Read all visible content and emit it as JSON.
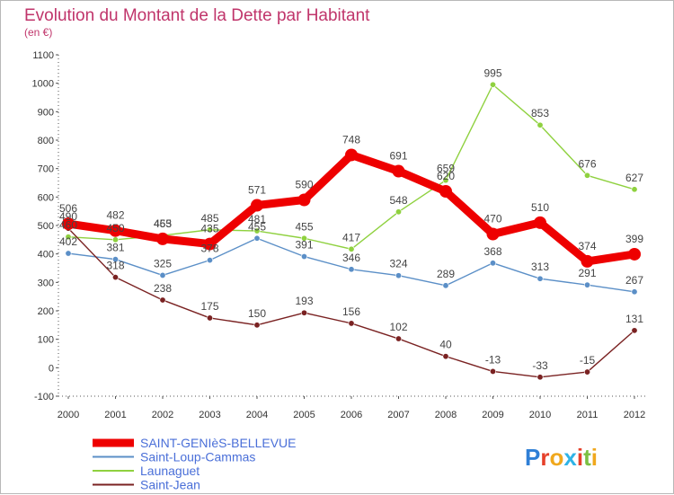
{
  "chart_data": {
    "type": "line",
    "title": "Evolution du Montant de la Dette par Habitant",
    "unit_label": "(en €)",
    "x": [
      "2000",
      "2001",
      "2002",
      "2003",
      "2004",
      "2005",
      "2006",
      "2007",
      "2008",
      "2009",
      "2010",
      "2011",
      "2012"
    ],
    "ylim": [
      -100,
      1100
    ],
    "yticks": [
      -100,
      0,
      100,
      200,
      300,
      400,
      500,
      600,
      700,
      800,
      900,
      1000,
      1100
    ],
    "grid": false,
    "legend_position": "bottom-left",
    "series": [
      {
        "name": "SAINT-GENIèS-BELLEVUE",
        "color": "#ee0000",
        "values": [
          506,
          482,
          453,
          435,
          571,
          590,
          748,
          691,
          620,
          470,
          510,
          374,
          399
        ],
        "labels": [
          "506",
          "482",
          "453",
          "435",
          "571",
          "590",
          "748",
          "691",
          "620",
          "470",
          "510",
          "374",
          "399"
        ]
      },
      {
        "name": "Saint-Loup-Cammas",
        "color": "#5b8fc7",
        "values": [
          402,
          381,
          325,
          378,
          455,
          391,
          346,
          324,
          289,
          368,
          313,
          291,
          267
        ],
        "labels": [
          "402",
          "381",
          "325",
          "378",
          "455",
          "391",
          "346",
          "324",
          "289",
          "368",
          "313",
          "291",
          "267"
        ]
      },
      {
        "name": "Launaguet",
        "color": "#8fd13f",
        "values": [
          460,
          450,
          465,
          485,
          481,
          455,
          417,
          548,
          659,
          995,
          853,
          676,
          627
        ],
        "labels": [
          "460",
          "450",
          "465",
          "485",
          "481",
          "455",
          "417",
          "548",
          "659",
          "995",
          "853",
          "676",
          "627"
        ]
      },
      {
        "name": "Saint-Jean",
        "color": "#7a2222",
        "values": [
          490,
          318,
          238,
          175,
          150,
          193,
          156,
          102,
          40,
          -13,
          -33,
          -15,
          131
        ],
        "labels": [
          "490",
          "318",
          "238",
          "175",
          "150",
          "193",
          "156",
          "102",
          "40",
          "-13",
          "-33",
          "-15",
          "131"
        ]
      }
    ]
  },
  "logo": {
    "text": "Proxiti",
    "letter_colors": [
      "#2f7fd6",
      "#e6402a",
      "#f0a81d",
      "#2fb3e6",
      "#e6402a",
      "#7bc043",
      "#f0a81d"
    ]
  }
}
